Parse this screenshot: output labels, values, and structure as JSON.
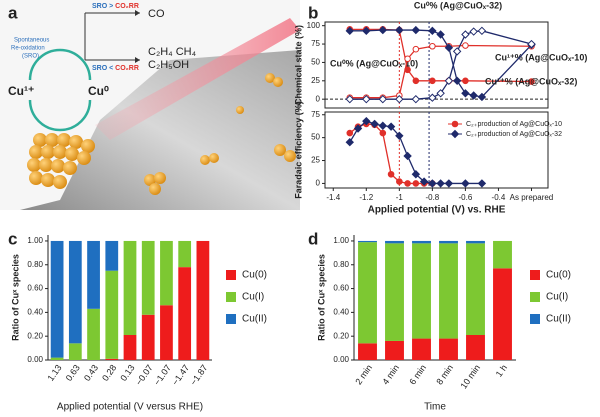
{
  "panel_a": {
    "label": "a",
    "sro_lines": [
      "Spontaneous",
      "Re-oxidation",
      "(SRO)"
    ],
    "rule_top": [
      "SRO",
      " > ",
      "CO₂RR"
    ],
    "product_top": "CO",
    "rule_bottom": [
      "SRO",
      " < ",
      "CO₂RR"
    ],
    "product_bottom": [
      "C₂H₄  CH₄",
      "C₂H₅OH"
    ],
    "cu1": "Cu¹⁺",
    "cu0": "Cu⁰"
  },
  "chart_data": [
    {
      "type": "line",
      "panel": "b",
      "ylabel": "Chemical state (%)",
      "xlim": [
        -1.45,
        -0.1
      ],
      "ylim": [
        -12,
        105
      ],
      "yticks": [
        0,
        25,
        50,
        75,
        100
      ],
      "reference_line": 0,
      "vlines": [
        {
          "value": -1.0,
          "color": "#e0302a"
        },
        {
          "value": -0.82,
          "color": "#1f2a6b"
        }
      ],
      "series": [
        {
          "name": "Cu⁰% (Ag@CuOₓ-10)",
          "color": "#e0302a",
          "marker": "circle",
          "filled": true,
          "x": [
            -1.3,
            -1.2,
            -1.1,
            -1.0,
            -0.95,
            -0.9,
            -0.8,
            -0.7,
            -0.6,
            -0.2
          ],
          "values": [
            95,
            95,
            95,
            94,
            40,
            25,
            25,
            25,
            25,
            24
          ]
        },
        {
          "name": "Cu¹⁺% (Ag@CuOₓ-10)",
          "color": "#e0302a",
          "marker": "circle",
          "filled": false,
          "x": [
            -1.3,
            -1.2,
            -1.1,
            -1.0,
            -0.95,
            -0.9,
            -0.8,
            -0.7,
            -0.6,
            -0.2
          ],
          "values": [
            2,
            2,
            2,
            5,
            55,
            68,
            72,
            72,
            73,
            72
          ]
        },
        {
          "name": "Cu⁰% (Ag@CuOₓ-32)",
          "color": "#1f2a6b",
          "marker": "diamond",
          "filled": true,
          "x": [
            -1.3,
            -1.2,
            -1.1,
            -1.0,
            -0.9,
            -0.8,
            -0.75,
            -0.7,
            -0.65,
            -0.6,
            -0.55,
            -0.5,
            -0.2
          ],
          "values": [
            93,
            93,
            94,
            94,
            94,
            93,
            88,
            70,
            25,
            8,
            5,
            3,
            74
          ]
        },
        {
          "name": "Cu¹⁺% (Ag@CuOₓ-32)",
          "color": "#1f2a6b",
          "marker": "diamond",
          "filled": false,
          "x": [
            -1.3,
            -1.2,
            -1.1,
            -1.0,
            -0.9,
            -0.8,
            -0.75,
            -0.7,
            -0.65,
            -0.6,
            -0.55,
            -0.5,
            -0.2
          ],
          "values": [
            0,
            0,
            0,
            0,
            0,
            2,
            8,
            25,
            65,
            88,
            92,
            93,
            75
          ]
        }
      ]
    },
    {
      "type": "line",
      "ylabel": "Faradaic efficiency (%)",
      "xlabel": "Applied potential (V) vs. RHE",
      "xlim": [
        -1.45,
        -0.1
      ],
      "ylim": [
        -5,
        78
      ],
      "yticks": [
        0,
        25,
        50,
        75
      ],
      "xticks": [
        -1.4,
        -1.2,
        -1.0,
        -0.8,
        -0.6,
        -0.4,
        {
          "value": -0.2,
          "label": "As prepared"
        }
      ],
      "legend": "upper right",
      "vlines": [
        {
          "value": -1.0,
          "color": "#e0302a"
        },
        {
          "value": -0.82,
          "color": "#1f2a6b"
        }
      ],
      "series": [
        {
          "name": "C₂₊production of Ag@CuOₓ-10",
          "color": "#e0302a",
          "marker": "circle",
          "filled": true,
          "x": [
            -1.3,
            -1.25,
            -1.2,
            -1.15,
            -1.1,
            -1.05,
            -1.0,
            -0.95,
            -0.9,
            -0.85,
            -0.8
          ],
          "values": [
            55,
            62,
            65,
            64,
            55,
            10,
            2,
            0,
            0,
            0,
            0
          ]
        },
        {
          "name": "C₂₊production of Ag@CuOₓ-32",
          "color": "#1f2a6b",
          "marker": "diamond",
          "filled": true,
          "x": [
            -1.3,
            -1.25,
            -1.2,
            -1.15,
            -1.1,
            -1.05,
            -1.0,
            -0.95,
            -0.9,
            -0.85,
            -0.8,
            -0.75,
            -0.7,
            -0.6,
            -0.5
          ],
          "values": [
            45,
            60,
            68,
            65,
            63,
            62,
            52,
            30,
            10,
            2,
            0,
            0,
            0,
            0,
            0
          ]
        }
      ]
    },
    {
      "type": "stacked_bar",
      "panel": "c",
      "ylabel": "Ratio of Cuˣ species",
      "xlabel": "Applied potential (V versus RHE)",
      "ylim": [
        0,
        1.05
      ],
      "yticks": [
        {
          "value": 0,
          "label": "0.00"
        },
        {
          "value": 0.2,
          "label": "0.20"
        },
        {
          "value": 0.4,
          "label": "0.40"
        },
        {
          "value": 0.6,
          "label": "0.60"
        },
        {
          "value": 0.8,
          "label": "0.80"
        },
        {
          "value": 1,
          "label": "1.00"
        }
      ],
      "categories": [
        "1.13",
        "0.63",
        "0.43",
        "0.28",
        "0.13",
        "−0.07",
        "−1.07",
        "−1.47",
        "−1.87"
      ],
      "series": [
        {
          "name": "Cu(0)",
          "color": "#ee1c1c",
          "values": [
            0,
            0,
            0,
            0.01,
            0.21,
            0.38,
            0.46,
            0.78,
            1.0
          ]
        },
        {
          "name": "Cu(I)",
          "color": "#7dc832",
          "values": [
            0.02,
            0.14,
            0.43,
            0.74,
            0.79,
            0.62,
            0.54,
            0.22,
            0
          ]
        },
        {
          "name": "Cu(II)",
          "color": "#1f6fc0",
          "values": [
            0.98,
            0.86,
            0.57,
            0.25,
            0,
            0,
            0,
            0,
            0
          ]
        }
      ]
    },
    {
      "type": "stacked_bar",
      "panel": "d",
      "ylabel": "Ratio of Cuˣ species",
      "xlabel": "Time",
      "ylim": [
        0,
        1.05
      ],
      "yticks": [
        {
          "value": 0,
          "label": "0.00"
        },
        {
          "value": 0.2,
          "label": "0.20"
        },
        {
          "value": 0.4,
          "label": "0.40"
        },
        {
          "value": 0.6,
          "label": "0.60"
        },
        {
          "value": 0.8,
          "label": "0.80"
        },
        {
          "value": 1,
          "label": "1.00"
        }
      ],
      "categories": [
        "2 min",
        "4 min",
        "6 min",
        "8 min",
        "10 min",
        "1 h"
      ],
      "series": [
        {
          "name": "Cu(0)",
          "color": "#ee1c1c",
          "values": [
            0.14,
            0.16,
            0.18,
            0.18,
            0.21,
            0.77
          ]
        },
        {
          "name": "Cu(I)",
          "color": "#7dc832",
          "values": [
            0.85,
            0.82,
            0.8,
            0.8,
            0.77,
            0.23
          ]
        },
        {
          "name": "Cu(II)",
          "color": "#1f6fc0",
          "values": [
            0.01,
            0.02,
            0.02,
            0.02,
            0.02,
            0
          ]
        }
      ]
    }
  ]
}
